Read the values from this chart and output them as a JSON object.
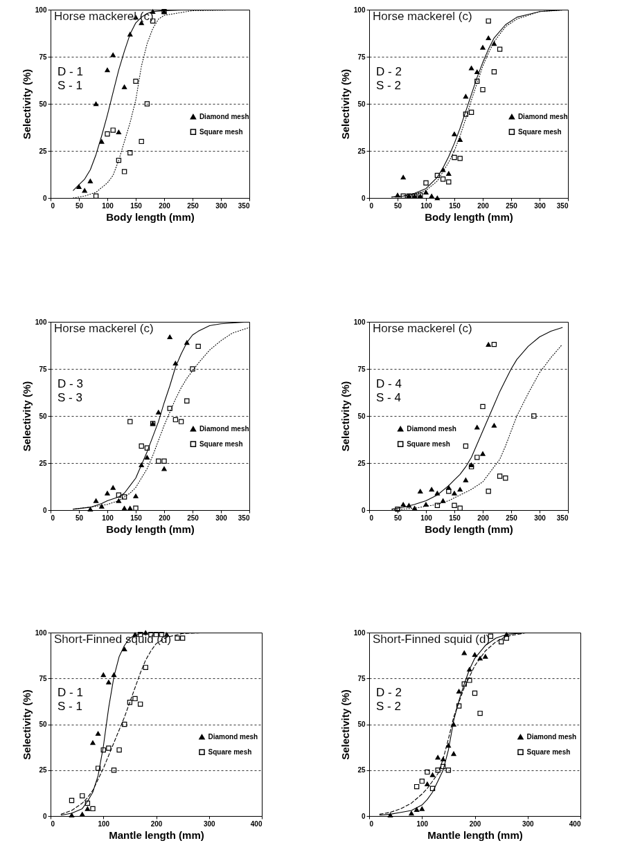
{
  "chart_data": [
    {
      "type": "scatter",
      "title": "Horse mackerel (c)",
      "xlabel": "Body length (mm)",
      "ylabel": "Selectivity (%)",
      "annotations": [
        "D - 1",
        "S - 1"
      ],
      "xlim": [
        0,
        350
      ],
      "xticks": [
        0,
        50,
        100,
        150,
        200,
        250,
        300,
        350
      ],
      "ylim": [
        0,
        100
      ],
      "yticks": [
        0,
        25,
        50,
        75,
        100
      ],
      "grid": "y",
      "legend": "right",
      "series": [
        {
          "name": "Diamond mesh",
          "color": "#000000",
          "marker": "triangle",
          "x": [
            50,
            60,
            70,
            80,
            90,
            100,
            110,
            120,
            130,
            140,
            150,
            160,
            180,
            200
          ],
          "values": [
            6,
            4,
            9,
            50,
            30,
            68,
            76,
            35,
            59,
            87,
            96,
            93,
            99,
            99
          ]
        },
        {
          "name": "Square mesh",
          "color": "#000000",
          "marker": "square",
          "x": [
            80,
            100,
            110,
            120,
            130,
            140,
            150,
            160,
            170,
            180,
            200
          ],
          "values": [
            1,
            34,
            36,
            20,
            14,
            24,
            62,
            30,
            50,
            94,
            99
          ]
        },
        {
          "type": "line",
          "color": "#000000",
          "line_style": "solid",
          "x": [
            40,
            50,
            60,
            70,
            80,
            90,
            100,
            110,
            120,
            130,
            140,
            150,
            160,
            170,
            180,
            200,
            250,
            350
          ],
          "values": [
            4,
            7,
            10,
            15,
            23,
            33,
            44,
            56,
            68,
            78,
            87,
            93,
            96,
            98,
            99,
            99.5,
            100,
            100
          ]
        },
        {
          "type": "line",
          "color": "#000000",
          "line_style": "dotted",
          "x": [
            40,
            60,
            80,
            100,
            110,
            120,
            130,
            140,
            150,
            160,
            170,
            180,
            190,
            200,
            250,
            350
          ],
          "values": [
            0,
            1,
            3,
            8,
            12,
            20,
            30,
            40,
            52,
            70,
            82,
            90,
            95,
            97,
            99.5,
            100
          ]
        }
      ]
    },
    {
      "type": "scatter",
      "title": "Horse mackerel (c)",
      "xlabel": "Body length (mm)",
      "ylabel": "Selectivity (%)",
      "annotations": [
        "D - 2",
        "S - 2"
      ],
      "xlim": [
        0,
        350
      ],
      "xticks": [
        0,
        50,
        100,
        150,
        200,
        250,
        300,
        350
      ],
      "ylim": [
        0,
        100
      ],
      "yticks": [
        0,
        25,
        50,
        75,
        100
      ],
      "grid": "y",
      "legend": "right",
      "series": [
        {
          "name": "Diamond mesh",
          "color": "#000000",
          "marker": "triangle",
          "x": [
            50,
            60,
            70,
            80,
            90,
            100,
            110,
            120,
            130,
            140,
            150,
            160,
            170,
            180,
            190,
            200,
            210,
            220
          ],
          "values": [
            1.5,
            11,
            1,
            1,
            1,
            3,
            1,
            0,
            15,
            13,
            34,
            31,
            54,
            69,
            67,
            80,
            85,
            82
          ]
        },
        {
          "name": "Square mesh",
          "color": "#000000",
          "marker": "square",
          "x": [
            60,
            70,
            80,
            90,
            100,
            120,
            130,
            140,
            150,
            160,
            170,
            180,
            190,
            200,
            210,
            220,
            230
          ],
          "values": [
            1,
            1,
            1,
            1.5,
            8,
            12,
            10,
            8.5,
            21.5,
            21,
            44.5,
            45.5,
            62,
            57.5,
            94,
            67,
            79
          ]
        },
        {
          "type": "line",
          "color": "#000000",
          "line_style": "solid",
          "x": [
            40,
            60,
            80,
            100,
            120,
            130,
            140,
            150,
            160,
            170,
            180,
            190,
            200,
            210,
            220,
            240,
            260,
            300,
            350
          ],
          "values": [
            0.5,
            1,
            2.5,
            5,
            11,
            16,
            22,
            29,
            37,
            46,
            55,
            64,
            72,
            79,
            85,
            92,
            96,
            99,
            100
          ]
        },
        {
          "type": "line",
          "color": "#000000",
          "line_style": "dotted",
          "x": [
            40,
            60,
            80,
            100,
            120,
            140,
            150,
            160,
            170,
            180,
            190,
            200,
            210,
            220,
            240,
            260,
            300,
            350
          ],
          "values": [
            0.5,
            1,
            2,
            4,
            9,
            19,
            25,
            33,
            42,
            52,
            61,
            70,
            77,
            83,
            91,
            95,
            99,
            100
          ]
        }
      ]
    },
    {
      "type": "scatter",
      "title": "Horse mackerel (c)",
      "xlabel": "Body length (mm)",
      "ylabel": "Selectivity (%)",
      "annotations": [
        "D - 3",
        "S - 3"
      ],
      "xlim": [
        0,
        350
      ],
      "xticks": [
        0,
        50,
        100,
        150,
        200,
        250,
        300,
        350
      ],
      "ylim": [
        0,
        100
      ],
      "yticks": [
        0,
        25,
        50,
        75,
        100
      ],
      "grid": "y",
      "legend": "right",
      "series": [
        {
          "name": "Diamond mesh",
          "color": "#000000",
          "marker": "triangle",
          "x": [
            70,
            80,
            90,
            100,
            110,
            120,
            130,
            140,
            150,
            160,
            170,
            180,
            190,
            200,
            210,
            220,
            240
          ],
          "values": [
            0.5,
            5,
            2,
            9,
            12,
            5,
            1,
            1,
            7.5,
            24,
            28,
            46,
            52,
            22,
            92,
            78,
            89
          ]
        },
        {
          "name": "Square mesh",
          "color": "#000000",
          "marker": "square",
          "x": [
            120,
            130,
            140,
            150,
            160,
            170,
            180,
            190,
            200,
            210,
            220,
            230,
            240,
            250,
            260
          ],
          "values": [
            8,
            7,
            47,
            1,
            34,
            33,
            46,
            26,
            26,
            54,
            48,
            47,
            58,
            75,
            87
          ]
        },
        {
          "type": "line",
          "color": "#000000",
          "line_style": "solid",
          "x": [
            40,
            70,
            90,
            100,
            120,
            130,
            140,
            150,
            160,
            170,
            180,
            190,
            200,
            210,
            220,
            230,
            240,
            250,
            260,
            280,
            300,
            350
          ],
          "values": [
            0.5,
            1.5,
            3.5,
            5,
            7,
            9,
            13,
            17,
            24,
            31,
            39,
            47,
            57,
            66,
            76,
            83,
            89,
            93,
            95,
            98,
            99,
            100
          ]
        },
        {
          "type": "line",
          "color": "#000000",
          "line_style": "dotted",
          "x": [
            40,
            80,
            100,
            120,
            140,
            150,
            160,
            170,
            180,
            190,
            200,
            210,
            220,
            230,
            240,
            250,
            260,
            280,
            300,
            320,
            350
          ],
          "values": [
            0.5,
            2,
            3,
            5,
            9,
            12,
            17,
            22,
            29,
            37,
            45,
            52,
            59,
            65,
            70,
            74,
            78,
            85,
            90,
            94,
            97
          ]
        }
      ]
    },
    {
      "type": "scatter",
      "title": "Horse mackerel (c)",
      "xlabel": "Body length (mm)",
      "ylabel": "Selectivity (%)",
      "annotations": [
        "D - 4",
        "S - 4"
      ],
      "xlim": [
        0,
        350
      ],
      "xticks": [
        0,
        50,
        100,
        150,
        200,
        250,
        300,
        350
      ],
      "ylim": [
        0,
        100
      ],
      "yticks": [
        0,
        25,
        50,
        75,
        100
      ],
      "grid": "y",
      "legend": "left",
      "series": [
        {
          "name": "Diamond mesh",
          "color": "#000000",
          "marker": "triangle",
          "x": [
            60,
            70,
            80,
            90,
            100,
            110,
            120,
            130,
            140,
            150,
            160,
            170,
            180,
            190,
            200,
            210,
            220
          ],
          "values": [
            3,
            2.5,
            1,
            10,
            3,
            11,
            9,
            5,
            12,
            9,
            11,
            16,
            24,
            44,
            30,
            88,
            45
          ]
        },
        {
          "name": "Square mesh",
          "color": "#000000",
          "marker": "square",
          "x": [
            50,
            120,
            140,
            150,
            160,
            170,
            180,
            190,
            200,
            210,
            220,
            230,
            240,
            290
          ],
          "values": [
            0.5,
            2.5,
            10,
            2.5,
            1,
            34,
            23,
            28,
            55,
            10,
            88,
            18,
            17,
            50
          ]
        },
        {
          "type": "line",
          "color": "#000000",
          "line_style": "solid",
          "x": [
            40,
            60,
            80,
            100,
            120,
            140,
            150,
            160,
            170,
            180,
            190,
            200,
            210,
            220,
            230,
            240,
            250,
            260,
            280,
            300,
            320,
            340
          ],
          "values": [
            0.5,
            1.5,
            3,
            5,
            8,
            13,
            16,
            19,
            23,
            28,
            35,
            42,
            49,
            56,
            63,
            69,
            75,
            80,
            87,
            92,
            95,
            97
          ]
        },
        {
          "type": "line",
          "color": "#000000",
          "line_style": "dotted",
          "x": [
            40,
            80,
            100,
            120,
            140,
            160,
            180,
            200,
            210,
            220,
            230,
            240,
            250,
            260,
            280,
            300,
            320,
            340
          ],
          "values": [
            0,
            1,
            2,
            3,
            5,
            8,
            11,
            15,
            19,
            23,
            27,
            34,
            42,
            50,
            62,
            73,
            81,
            88
          ]
        }
      ]
    },
    {
      "type": "scatter",
      "title": "Short-Finned squid (d)",
      "xlabel": "Mantle length (mm)",
      "ylabel": "Selectivity (%)",
      "annotations": [
        "D - 1",
        "S - 1"
      ],
      "xlim": [
        0,
        400
      ],
      "xticks": [
        0,
        100,
        200,
        300,
        400
      ],
      "ylim": [
        0,
        100
      ],
      "yticks": [
        0,
        25,
        50,
        75,
        100
      ],
      "grid": "y",
      "legend": "right",
      "series": [
        {
          "name": "Diamond mesh",
          "color": "#000000",
          "marker": "triangle",
          "x": [
            40,
            60,
            70,
            80,
            90,
            100,
            110,
            120,
            140,
            160,
            180,
            220
          ],
          "values": [
            0.5,
            1,
            4,
            40,
            45,
            77,
            73,
            77,
            91,
            99,
            100,
            99
          ]
        },
        {
          "name": "Square mesh",
          "color": "#000000",
          "marker": "square",
          "x": [
            40,
            60,
            70,
            80,
            90,
            100,
            110,
            120,
            130,
            140,
            150,
            160,
            170,
            170,
            180,
            190,
            200,
            210,
            240,
            250
          ],
          "values": [
            8.5,
            11,
            7,
            4,
            26,
            36,
            37,
            25,
            36,
            50,
            62,
            64,
            61,
            99,
            81,
            99,
            99,
            99,
            97,
            97
          ]
        },
        {
          "type": "line",
          "color": "#000000",
          "line_style": "solid",
          "x": [
            20,
            40,
            60,
            70,
            80,
            90,
            100,
            110,
            120,
            130,
            140,
            150,
            160,
            170,
            200,
            300,
            400
          ],
          "values": [
            0.5,
            1.5,
            4,
            8,
            13,
            22,
            38,
            59,
            76,
            87,
            93,
            97,
            98.5,
            99.5,
            100,
            100,
            100
          ]
        },
        {
          "type": "line",
          "color": "#000000",
          "line_style": "dashed",
          "x": [
            20,
            40,
            60,
            70,
            80,
            90,
            100,
            110,
            120,
            130,
            140,
            150,
            160,
            170,
            180,
            190,
            200,
            220,
            250,
            300,
            400
          ],
          "values": [
            1,
            3,
            7,
            10,
            14,
            20,
            26,
            33,
            40,
            47,
            54,
            62,
            70,
            78,
            85,
            90,
            94,
            97.5,
            99.5,
            100,
            100
          ]
        }
      ]
    },
    {
      "type": "scatter",
      "title": "Short-Finned squid (d)",
      "xlabel": "Mantle length (mm)",
      "ylabel": "Selectivity (%)",
      "annotations": [
        "D - 2",
        "S - 2"
      ],
      "xlim": [
        0,
        400
      ],
      "xticks": [
        0,
        100,
        200,
        300,
        400
      ],
      "ylim": [
        0,
        100
      ],
      "yticks": [
        0,
        25,
        50,
        75,
        100
      ],
      "grid": "y",
      "legend": "right",
      "series": [
        {
          "name": "Diamond mesh",
          "color": "#000000",
          "marker": "triangle",
          "x": [
            40,
            80,
            90,
            100,
            110,
            120,
            130,
            140,
            150,
            160,
            160,
            170,
            180,
            190,
            200,
            210,
            220,
            260
          ],
          "values": [
            0.5,
            1.5,
            3.5,
            4,
            17.5,
            22.5,
            32,
            31,
            38.5,
            50,
            34,
            68,
            89,
            80,
            88,
            86,
            87,
            99
          ]
        },
        {
          "name": "Square mesh",
          "color": "#000000",
          "marker": "square",
          "x": [
            90,
            100,
            110,
            120,
            130,
            140,
            150,
            170,
            180,
            190,
            200,
            210,
            230,
            250,
            260
          ],
          "values": [
            16,
            19,
            24,
            15,
            25,
            27,
            25,
            60,
            72,
            74,
            67,
            56,
            98,
            95,
            97
          ]
        },
        {
          "type": "line",
          "color": "#000000",
          "line_style": "solid",
          "x": [
            20,
            40,
            60,
            80,
            100,
            110,
            120,
            130,
            140,
            150,
            160,
            170,
            180,
            190,
            200,
            220,
            240,
            260,
            300,
            400
          ],
          "values": [
            0.5,
            1,
            2,
            3,
            6,
            9,
            13,
            19,
            25,
            36,
            52,
            63,
            72,
            80,
            86,
            93,
            97,
            99,
            100,
            100
          ]
        },
        {
          "type": "line",
          "color": "#000000",
          "line_style": "dashed",
          "x": [
            20,
            40,
            60,
            80,
            100,
            110,
            120,
            130,
            140,
            150,
            160,
            170,
            180,
            190,
            200,
            220,
            240,
            260,
            300,
            400
          ],
          "values": [
            1,
            2,
            4,
            7,
            12,
            15,
            19,
            23,
            31,
            42,
            54,
            62,
            70,
            76,
            82,
            90,
            95,
            98,
            100,
            100
          ]
        }
      ]
    }
  ]
}
